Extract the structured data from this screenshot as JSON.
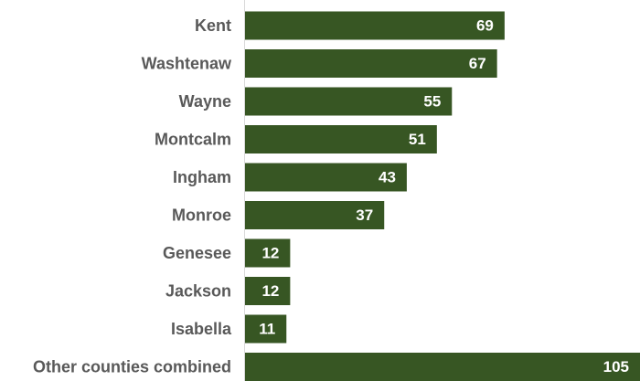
{
  "chart_data": {
    "type": "bar",
    "orientation": "horizontal",
    "categories": [
      "Kent",
      "Washtenaw",
      "Wayne",
      "Montcalm",
      "Ingham",
      "Monroe",
      "Genesee",
      "Jackson",
      "Isabella",
      "Other counties combined"
    ],
    "values": [
      69,
      67,
      55,
      51,
      43,
      37,
      12,
      12,
      11,
      105
    ],
    "xlim": [
      0,
      105
    ],
    "grid": false,
    "legend": "none",
    "bar_color": "#375623",
    "label_color": "#595959",
    "value_label_color": "#ffffff"
  }
}
